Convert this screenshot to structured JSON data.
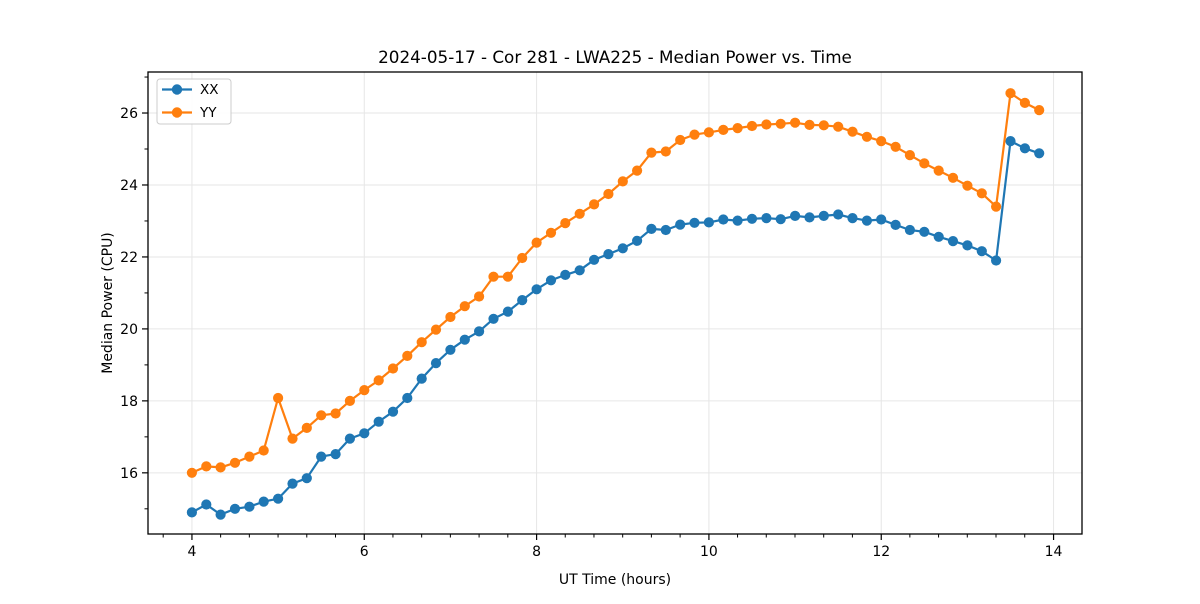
{
  "chart_data": {
    "type": "line",
    "title": "2024-05-17 - Cor 281 - LWA225 - Median Power vs. Time",
    "xlabel": "UT Time (hours)",
    "ylabel": "Median Power (CPU)",
    "xlim": [
      3.49,
      14.33
    ],
    "ylim": [
      14.3,
      27.14
    ],
    "xticks": [
      4,
      6,
      8,
      10,
      12,
      14
    ],
    "yticks": [
      16,
      18,
      20,
      22,
      24,
      26
    ],
    "x_minor_step": 0.3333,
    "y_minor_step": 1.0,
    "grid": true,
    "grid_color": "#e6e6e6",
    "legend_position": "upper-left",
    "x": [
      4.0,
      4.167,
      4.333,
      4.5,
      4.667,
      4.833,
      5.0,
      5.167,
      5.333,
      5.5,
      5.667,
      5.833,
      6.0,
      6.167,
      6.333,
      6.5,
      6.667,
      6.833,
      7.0,
      7.167,
      7.333,
      7.5,
      7.667,
      7.833,
      8.0,
      8.167,
      8.333,
      8.5,
      8.667,
      8.833,
      9.0,
      9.167,
      9.333,
      9.5,
      9.667,
      9.833,
      10.0,
      10.167,
      10.333,
      10.5,
      10.667,
      10.833,
      11.0,
      11.167,
      11.333,
      11.5,
      11.667,
      11.833,
      12.0,
      12.167,
      12.333,
      12.5,
      12.667,
      12.833,
      13.0,
      13.167,
      13.333,
      13.5,
      13.667,
      13.833
    ],
    "series": [
      {
        "name": "XX",
        "color": "#1f77b4",
        "values": [
          14.9,
          15.12,
          14.84,
          15.0,
          15.06,
          15.2,
          15.28,
          15.7,
          15.85,
          16.45,
          16.52,
          16.95,
          17.1,
          17.42,
          17.7,
          18.08,
          18.62,
          19.05,
          19.42,
          19.7,
          19.93,
          20.28,
          20.48,
          20.8,
          21.1,
          21.35,
          21.5,
          21.63,
          21.92,
          22.08,
          22.24,
          22.45,
          22.78,
          22.75,
          22.9,
          22.95,
          22.96,
          23.04,
          23.01,
          23.06,
          23.08,
          23.05,
          23.14,
          23.1,
          23.14,
          23.18,
          23.08,
          23.01,
          23.04,
          22.89,
          22.75,
          22.7,
          22.56,
          22.44,
          22.32,
          22.16,
          21.9,
          25.22,
          25.02,
          24.88
        ]
      },
      {
        "name": "YY",
        "color": "#ff7f0e",
        "values": [
          16.0,
          16.18,
          16.15,
          16.28,
          16.45,
          16.62,
          18.08,
          16.95,
          17.25,
          17.6,
          17.65,
          18.0,
          18.3,
          18.57,
          18.9,
          19.25,
          19.63,
          19.98,
          20.33,
          20.63,
          20.9,
          21.45,
          21.45,
          21.97,
          22.4,
          22.67,
          22.94,
          23.2,
          23.46,
          23.75,
          24.1,
          24.4,
          24.9,
          24.93,
          25.25,
          25.4,
          25.46,
          25.53,
          25.58,
          25.64,
          25.68,
          25.7,
          25.73,
          25.67,
          25.66,
          25.62,
          25.48,
          25.34,
          25.22,
          25.06,
          24.83,
          24.6,
          24.4,
          24.2,
          23.98,
          23.77,
          23.4,
          26.55,
          26.28,
          26.08
        ]
      }
    ]
  },
  "legend": {
    "entries": [
      "XX",
      "YY"
    ]
  }
}
